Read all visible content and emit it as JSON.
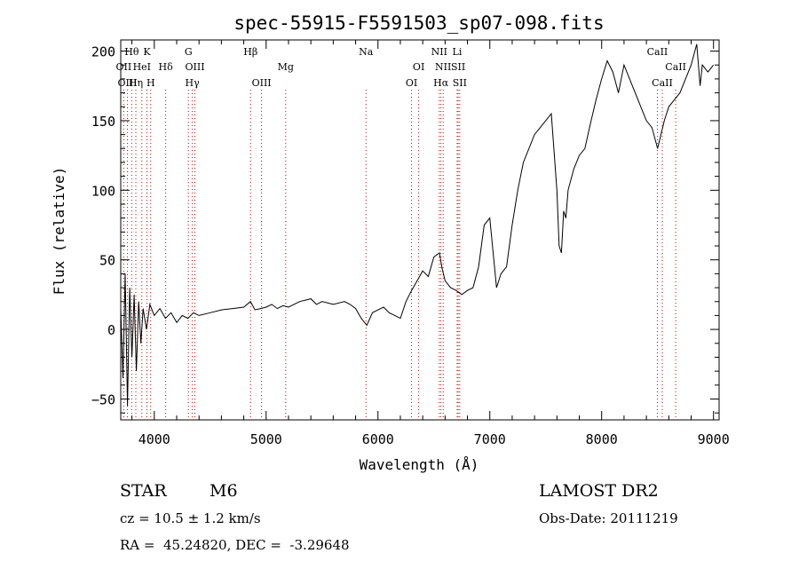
{
  "chart_data": {
    "type": "line",
    "title": "spec-55915-F5591503_sp07-098.fits",
    "xlabel": "Wavelength (Å)",
    "ylabel": "Flux (relative)",
    "xlim": [
      3700,
      9050
    ],
    "ylim": [
      -65,
      208
    ],
    "xticks": [
      4000,
      5000,
      6000,
      7000,
      8000,
      9000
    ],
    "yticks": [
      -50,
      0,
      50,
      100,
      150,
      200
    ],
    "xtick_labels": [
      "4000",
      "5000",
      "6000",
      "7000",
      "8000",
      "9000"
    ],
    "ytick_labels": [
      "−50",
      "0",
      "50",
      "100",
      "150",
      "200"
    ],
    "line_color": "#000000",
    "marker_color": "#cc0000",
    "series": [
      {
        "x": [
          3700,
          3720,
          3740,
          3760,
          3780,
          3800,
          3820,
          3840,
          3860,
          3880,
          3900,
          3930,
          3960,
          4000,
          4050,
          4100,
          4150,
          4200,
          4250,
          4300,
          4350,
          4400,
          4500,
          4600,
          4700,
          4800,
          4860,
          4900,
          4950,
          5000,
          5050,
          5100,
          5150,
          5200,
          5300,
          5400,
          5450,
          5500,
          5600,
          5700,
          5750,
          5800,
          5850,
          5900,
          5950,
          6000,
          6050,
          6100,
          6150,
          6200,
          6250,
          6300,
          6350,
          6400,
          6450,
          6500,
          6550,
          6570,
          6600,
          6650,
          6700,
          6750,
          6800,
          6850,
          6900,
          6950,
          7000,
          7030,
          7060,
          7100,
          7150,
          7200,
          7250,
          7300,
          7350,
          7400,
          7450,
          7500,
          7550,
          7600,
          7620,
          7640,
          7660,
          7680,
          7700,
          7750,
          7800,
          7850,
          7900,
          7950,
          8000,
          8050,
          8100,
          8150,
          8200,
          8250,
          8300,
          8350,
          8400,
          8450,
          8500,
          8530,
          8560,
          8600,
          8650,
          8700,
          8750,
          8800,
          8850,
          8880,
          8900,
          8950,
          9000
        ],
        "y": [
          15,
          -35,
          40,
          -55,
          30,
          -20,
          25,
          -30,
          20,
          -10,
          15,
          0,
          18,
          10,
          15,
          8,
          12,
          5,
          10,
          8,
          12,
          10,
          12,
          14,
          15,
          16,
          20,
          14,
          15,
          16,
          18,
          15,
          17,
          16,
          20,
          22,
          18,
          20,
          18,
          20,
          18,
          15,
          8,
          3,
          12,
          14,
          16,
          12,
          10,
          8,
          20,
          28,
          35,
          42,
          38,
          52,
          55,
          45,
          35,
          30,
          28,
          25,
          28,
          30,
          45,
          75,
          80,
          55,
          30,
          40,
          45,
          75,
          100,
          120,
          130,
          140,
          145,
          150,
          155,
          100,
          60,
          55,
          85,
          80,
          100,
          115,
          125,
          130,
          148,
          165,
          180,
          193,
          185,
          170,
          190,
          180,
          170,
          160,
          150,
          145,
          130,
          140,
          150,
          160,
          165,
          170,
          180,
          190,
          205,
          175,
          190,
          185,
          190
        ]
      }
    ],
    "line_markers": [
      {
        "label": "Hθ",
        "wavelength": 3798,
        "row": 0
      },
      {
        "label": "K",
        "wavelength": 3934,
        "row": 0
      },
      {
        "label": "G",
        "wavelength": 4305,
        "row": 0
      },
      {
        "label": "Hβ",
        "wavelength": 4861,
        "row": 0
      },
      {
        "label": "Na",
        "wavelength": 5893,
        "row": 0
      },
      {
        "label": "NII",
        "wavelength": 6548,
        "row": 0
      },
      {
        "label": "Li",
        "wavelength": 6708,
        "row": 0
      },
      {
        "label": "CaII",
        "wavelength": 8498,
        "row": 0
      },
      {
        "label": "OII",
        "wavelength": 3727,
        "row": 1
      },
      {
        "label": "HeI",
        "wavelength": 3889,
        "row": 1
      },
      {
        "label": "Hδ",
        "wavelength": 4102,
        "row": 1
      },
      {
        "label": "OIII",
        "wavelength": 4363,
        "row": 1
      },
      {
        "label": "Mg",
        "wavelength": 5175,
        "row": 1
      },
      {
        "label": "OI",
        "wavelength": 6364,
        "row": 1
      },
      {
        "label": "NII",
        "wavelength": 6583,
        "row": 1
      },
      {
        "label": "SII",
        "wavelength": 6717,
        "row": 1
      },
      {
        "label": "CaII",
        "wavelength": 8662,
        "row": 1
      },
      {
        "label": "OIII",
        "wavelength": 3760,
        "row": 2
      },
      {
        "label": "Hη",
        "wavelength": 3835,
        "row": 2
      },
      {
        "label": "H",
        "wavelength": 3968,
        "row": 2
      },
      {
        "label": "Hγ",
        "wavelength": 4340,
        "row": 2
      },
      {
        "label": "OIII",
        "wavelength": 4959,
        "row": 2
      },
      {
        "label": "OI",
        "wavelength": 6300,
        "row": 2
      },
      {
        "label": "Hα",
        "wavelength": 6563,
        "row": 2
      },
      {
        "label": "SII",
        "wavelength": 6731,
        "row": 2
      },
      {
        "label": "CaII",
        "wavelength": 8542,
        "row": 2
      }
    ]
  },
  "info": {
    "object_class": "STAR",
    "subclass": "M6",
    "survey": "LAMOST DR2",
    "redshift": "cz = 10.5 ± 1.2 km/s",
    "obs_date": "Obs-Date: 20111219",
    "coordinates": "RA =  45.24820, DEC =  -3.29648"
  }
}
